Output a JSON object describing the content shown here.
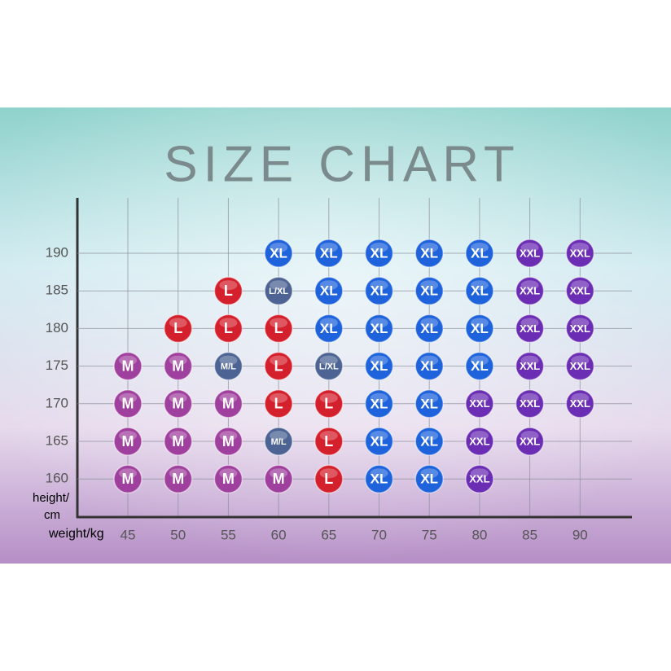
{
  "title": "SIZE CHART",
  "y_label": [
    "height/",
    "cm"
  ],
  "x_label": "weight/kg",
  "weights": [
    45,
    50,
    55,
    60,
    65,
    70,
    75,
    80,
    85,
    90
  ],
  "heights": [
    190,
    185,
    180,
    175,
    170,
    165,
    160
  ],
  "grid": [
    [
      null,
      null,
      null,
      "XL",
      "XL",
      "XL",
      "XL",
      "XL",
      "XXL",
      "XXL"
    ],
    [
      null,
      null,
      "L",
      "L/XL",
      "XL",
      "XL",
      "XL",
      "XL",
      "XXL",
      "XXL"
    ],
    [
      null,
      "L",
      "L",
      "L",
      "XL",
      "XL",
      "XL",
      "XL",
      "XXL",
      "XXL"
    ],
    [
      "M",
      "M",
      "M/L",
      "L",
      "L/XL",
      "XL",
      "XL",
      "XL",
      "XXL",
      "XXL"
    ],
    [
      "M",
      "M",
      "M",
      "L",
      "L",
      "XL",
      "XL",
      "XXL",
      "XXL",
      "XXL"
    ],
    [
      "M",
      "M",
      "M",
      "M/L",
      "L",
      "XL",
      "XL",
      "XXL",
      "XXL",
      null
    ],
    [
      "M",
      "M",
      "M",
      "M",
      "L",
      "XL",
      "XL",
      "XXL",
      null,
      null
    ]
  ],
  "colors": {
    "M": "#a0409e",
    "L": "#d41f2c",
    "XL": "#1f63dc",
    "XXL": "#6b2db3",
    "M/L": "#4c6394",
    "L/XL": "#4c6394"
  }
}
